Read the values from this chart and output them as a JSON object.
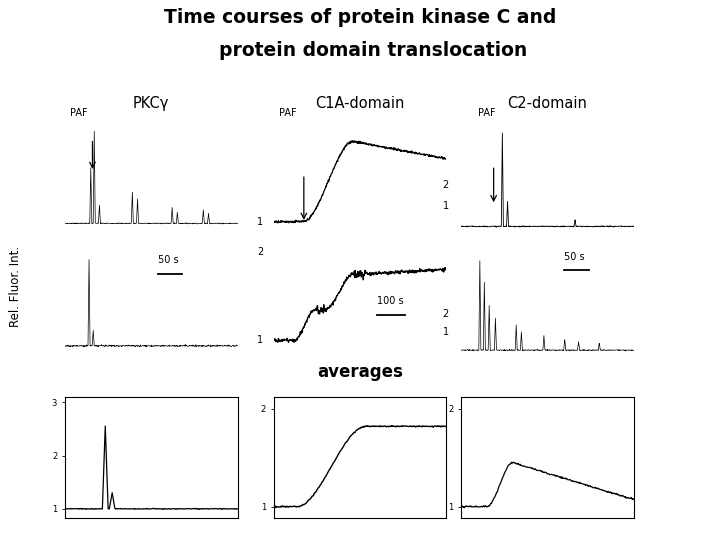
{
  "title_line1": "Time courses of protein kinase C and",
  "title_line2": "    protein domain translocation",
  "col_headers": [
    "PKCγ",
    "C1A-domain",
    "C2-domain"
  ],
  "ylabel": "Rel. Fluor. Int.",
  "averages_label": "averages",
  "background_color": "#ffffff",
  "text_color": "#000000"
}
